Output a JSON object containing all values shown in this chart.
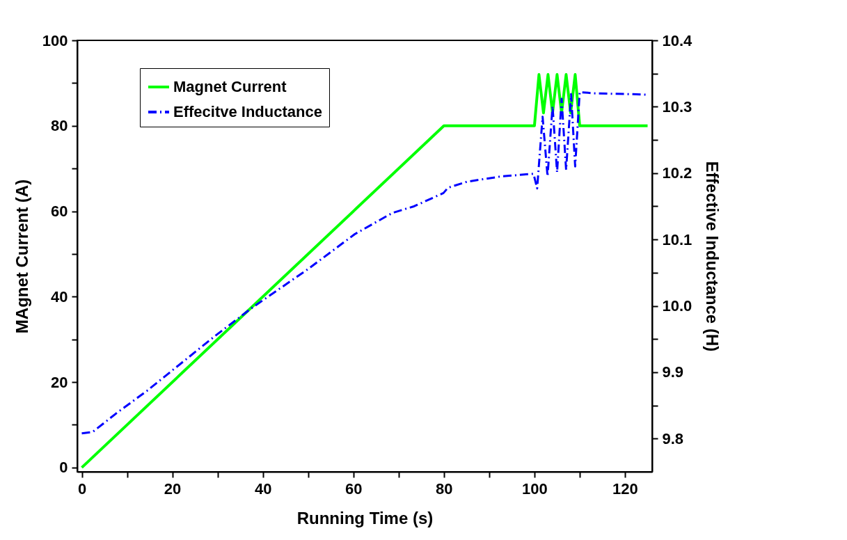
{
  "chart_data": {
    "type": "line",
    "xlabel": "Running Time (s)",
    "ylabel": "MAgnet Current (A)",
    "y2label": "Effective Inductance (H)",
    "xlim": [
      -1,
      126
    ],
    "xticks": [
      0,
      {
        "value": 10,
        "label": null
      },
      20,
      {
        "value": 30,
        "label": null
      },
      40,
      {
        "value": 50,
        "label": null
      },
      60,
      {
        "value": 70,
        "label": null
      },
      80,
      {
        "value": 90,
        "label": null
      },
      100,
      {
        "value": 110,
        "label": null
      },
      120
    ],
    "ylim": [
      -1,
      100
    ],
    "yticks": [
      0,
      {
        "value": 10,
        "label": null
      },
      20,
      {
        "value": 30,
        "label": null
      },
      40,
      {
        "value": 50,
        "label": null
      },
      60,
      {
        "value": 70,
        "label": null
      },
      80,
      {
        "value": 90,
        "label": null
      },
      100
    ],
    "y2lim": [
      9.75,
      10.4
    ],
    "y2ticks": [
      9.8,
      {
        "value": 9.85,
        "label": null
      },
      9.9,
      {
        "value": 9.95,
        "label": null
      },
      {
        "value": 10,
        "label": "10.0"
      },
      {
        "value": 10.05,
        "label": null
      },
      10.1,
      {
        "value": 10.15,
        "label": null
      },
      10.2,
      {
        "value": 10.25,
        "label": null
      },
      10.3,
      {
        "value": 10.35,
        "label": null
      },
      10.4
    ],
    "legend": "top left",
    "grid": false,
    "series": [
      {
        "name": "Magnet Current",
        "color": "#00ff00",
        "line_style": "solid",
        "x": [
          0,
          80,
          100,
          101,
          102,
          103,
          104,
          105,
          106,
          107,
          108,
          109,
          110,
          125
        ],
        "values": [
          0,
          80,
          80,
          92,
          83,
          92,
          83,
          92,
          83,
          92,
          83,
          92,
          80,
          80
        ]
      },
      {
        "name": "Effecitve Inductance",
        "color": "#0000ff",
        "line_style": "dashed",
        "axis": "y2",
        "x": [
          0,
          2.4,
          7.6,
          14.4,
          29.5,
          37.8,
          50.1,
          60.3,
          68.6,
          73.4,
          79.9,
          80.9,
          85.1,
          92.6,
          99.8,
          100.6,
          101.8,
          102.9,
          104,
          105,
          106,
          107,
          108.1,
          109,
          110,
          111.8,
          113.8,
          121.5,
          124.9
        ],
        "values": [
          9.808,
          9.81,
          9.838,
          9.872,
          9.955,
          9.998,
          10.056,
          10.108,
          10.14,
          10.15,
          10.17,
          10.178,
          10.187,
          10.195,
          10.199,
          10.177,
          10.285,
          10.195,
          10.301,
          10.201,
          10.312,
          10.205,
          10.319,
          10.21,
          10.322,
          10.321,
          10.32,
          10.319,
          10.318
        ]
      }
    ]
  }
}
